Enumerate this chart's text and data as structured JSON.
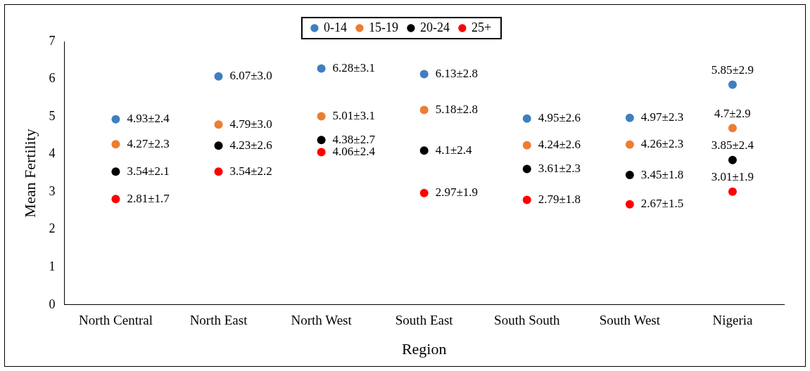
{
  "chart_data": {
    "type": "scatter",
    "xlabel": "Region",
    "ylabel": "Mean Fertility",
    "categories": [
      "North Central",
      "North East",
      "North West",
      "South East",
      "South South",
      "South West",
      "Nigeria"
    ],
    "ylim": [
      0,
      7
    ],
    "yticks": [
      0,
      1,
      2,
      3,
      4,
      5,
      6,
      7
    ],
    "grid": false,
    "legend": "top",
    "marker": "circle",
    "series": [
      {
        "name": "0-14",
        "color": "#3f7fc0",
        "values": [
          4.93,
          6.07,
          6.28,
          6.13,
          4.95,
          4.97,
          5.85
        ],
        "value_labels": [
          "4.93±2.4",
          "6.07±3.0",
          "6.28±3.1",
          "6.13±2.8",
          "4.95±2.6",
          "4.97±2.3",
          "5.85±2.9"
        ]
      },
      {
        "name": "15-19",
        "color": "#ed7d31",
        "values": [
          4.27,
          4.79,
          5.01,
          5.18,
          4.24,
          4.26,
          4.7
        ],
        "value_labels": [
          "4.27±2.3",
          "4.79±3.0",
          "5.01±3.1",
          "5.18±2.8",
          "4.24±2.6",
          "4.26±2.3",
          "4.7±2.9"
        ]
      },
      {
        "name": "20-24",
        "color": "#000000",
        "values": [
          3.54,
          4.23,
          4.38,
          4.1,
          3.61,
          3.45,
          3.85
        ],
        "value_labels": [
          "3.54±2.1",
          "4.23±2.6",
          "4.38±2.7",
          "4.1±2.4",
          "3.61±2.3",
          "3.45±1.8",
          "3.85±2.4"
        ]
      },
      {
        "name": "25+",
        "color": "#ff0000",
        "values": [
          2.81,
          3.54,
          4.06,
          2.97,
          2.79,
          2.67,
          3.01
        ],
        "value_labels": [
          "2.81±1.7",
          "3.54±2.2",
          "4.06±2.4",
          "2.97±1.9",
          "2.79±1.8",
          "2.67±1.5",
          "3.01±1.9"
        ]
      }
    ]
  }
}
